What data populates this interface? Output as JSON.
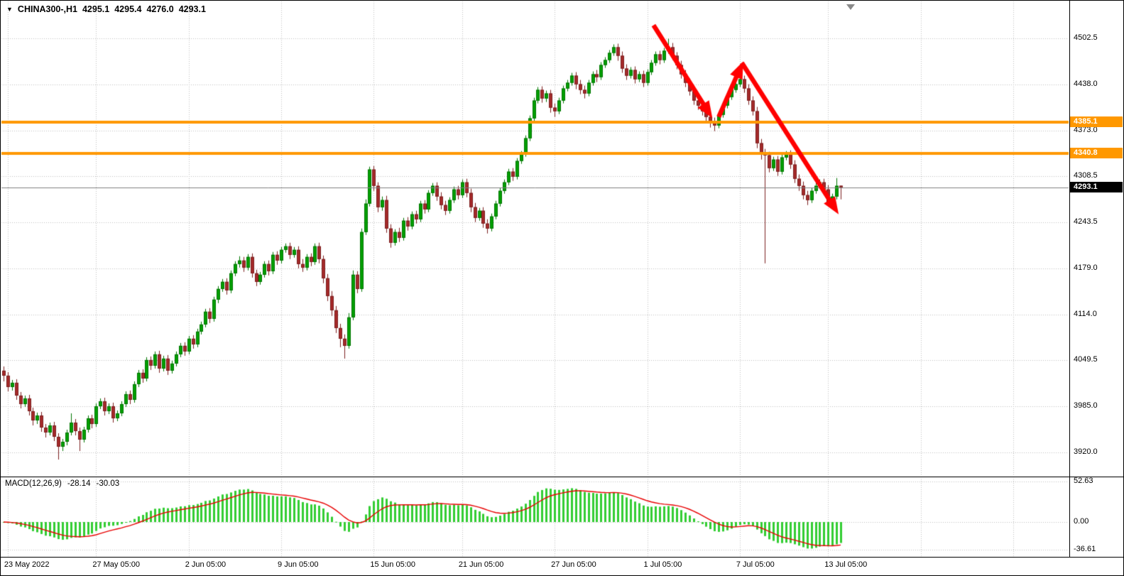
{
  "header": {
    "symbol_timeframe": "CHINA300-,H1",
    "ohlc": {
      "open": "4295.1",
      "high": "4295.4",
      "low": "4276.0",
      "close": "4293.1"
    }
  },
  "icons": {
    "symbol_dropdown": "▼"
  },
  "macd_panel": {
    "label": "MACD(12,26,9)",
    "value_main": "-28.14",
    "value_signal": "-30.03"
  },
  "chart_data": {
    "type": "candlestick",
    "symbol": "CHINA300-",
    "timeframe": "H1",
    "price_axis": {
      "ticks": [
        4502.5,
        4438.0,
        4373.0,
        4308.5,
        4243.5,
        4179.0,
        4114.0,
        4049.5,
        3985.0,
        3920.0
      ],
      "labels": [
        "4502.5",
        "4438.0",
        "4373.0",
        "4308.5",
        "4243.5",
        "4179.0",
        "4114.0",
        "4049.5",
        "3985.0",
        "3920.0"
      ]
    },
    "time_axis": {
      "labels": [
        "23 May 2022",
        "27 May 05:00",
        "2 Jun 05:00",
        "9 Jun 05:00",
        "15 Jun 05:00",
        "21 Jun 05:00",
        "27 Jun 05:00",
        "1 Jul 05:00",
        "7 Jul 05:00",
        "13 Jul 05:00"
      ],
      "candle_indices": [
        1,
        22,
        44,
        66,
        88,
        109,
        131,
        153,
        175,
        196
      ],
      "grid_indices": [
        1,
        22,
        44,
        66,
        88,
        109,
        131,
        153,
        175,
        196,
        218,
        240
      ]
    },
    "levels": [
      {
        "price": 4385.1,
        "label": "4385.1",
        "color": "#FF9800"
      },
      {
        "price": 4340.8,
        "label": "4340.8",
        "color": "#FF9800"
      }
    ],
    "current_price": {
      "price": 4293.1,
      "label": "4293.1"
    },
    "macd": {
      "fast": 12,
      "slow": 26,
      "signal": 9,
      "axis_ticks": [
        52.63,
        0.0,
        -36.61
      ],
      "axis_labels": [
        "52.63",
        "0.00",
        "-36.61"
      ]
    },
    "annotations": {
      "arrows": [
        {
          "from": [
            154.5,
            4521
          ],
          "to": [
            168.5,
            4390
          ]
        },
        {
          "from": [
            170.0,
            4392
          ],
          "to": [
            175.8,
            4470
          ]
        },
        {
          "from": [
            175.5,
            4468
          ],
          "to": [
            198.5,
            4255
          ]
        }
      ]
    },
    "colors": {
      "up_fill": "#00A000",
      "up_edge": "#007500",
      "down_fill": "#A52A2A",
      "down_edge": "#7C1F1F",
      "grid": "#BFBFBF",
      "level": "#FF9800",
      "current_line": "#7F7F7F",
      "macd_histogram": "#32CD32",
      "macd_signal": "#E80000",
      "arrow": "#FF0000"
    },
    "candles": [
      [
        4035,
        4041,
        4020,
        4028
      ],
      [
        4028,
        4033,
        4006,
        4012
      ],
      [
        4012,
        4022,
        4007,
        4018
      ],
      [
        4018,
        4023,
        3994,
        4000
      ],
      [
        4000,
        4005,
        3982,
        3988
      ],
      [
        3988,
        4000,
        3984,
        3996
      ],
      [
        3996,
        4001,
        3972,
        3978
      ],
      [
        3978,
        3983,
        3958,
        3965
      ],
      [
        3965,
        3976,
        3960,
        3972
      ],
      [
        3972,
        3977,
        3949,
        3955
      ],
      [
        3955,
        3960,
        3941,
        3948
      ],
      [
        3948,
        3962,
        3944,
        3958
      ],
      [
        3958,
        3963,
        3936,
        3942
      ],
      [
        3942,
        3947,
        3910,
        3928
      ],
      [
        3928,
        3939,
        3922,
        3935
      ],
      [
        3935,
        3952,
        3930,
        3948
      ],
      [
        3948,
        3975,
        3944,
        3962
      ],
      [
        3962,
        3967,
        3944,
        3950
      ],
      [
        3950,
        3955,
        3922,
        3938
      ],
      [
        3938,
        3956,
        3934,
        3952
      ],
      [
        3952,
        3972,
        3948,
        3968
      ],
      [
        3968,
        3973,
        3954,
        3960
      ],
      [
        3960,
        3989,
        3956,
        3985
      ],
      [
        3985,
        3996,
        3981,
        3992
      ],
      [
        3992,
        3997,
        3972,
        3978
      ],
      [
        3978,
        3989,
        3974,
        3985
      ],
      [
        3985,
        3990,
        3962,
        3968
      ],
      [
        3968,
        3979,
        3964,
        3975
      ],
      [
        3975,
        3992,
        3971,
        3988
      ],
      [
        3988,
        4006,
        3984,
        4002
      ],
      [
        4002,
        4007,
        3988,
        3994
      ],
      [
        3994,
        4020,
        3990,
        4016
      ],
      [
        4016,
        4036,
        4012,
        4032
      ],
      [
        4032,
        4037,
        4018,
        4024
      ],
      [
        4024,
        4054,
        4020,
        4050
      ],
      [
        4050,
        4055,
        4036,
        4042
      ],
      [
        4042,
        4062,
        4038,
        4058
      ],
      [
        4058,
        4063,
        4032,
        4038
      ],
      [
        4038,
        4056,
        4034,
        4052
      ],
      [
        4052,
        4057,
        4029,
        4035
      ],
      [
        4035,
        4049,
        4031,
        4045
      ],
      [
        4045,
        4062,
        4041,
        4058
      ],
      [
        4058,
        4074,
        4054,
        4070
      ],
      [
        4070,
        4075,
        4056,
        4062
      ],
      [
        4062,
        4084,
        4058,
        4080
      ],
      [
        4080,
        4085,
        4066,
        4072
      ],
      [
        4072,
        4094,
        4068,
        4090
      ],
      [
        4090,
        4104,
        4086,
        4100
      ],
      [
        4100,
        4122,
        4096,
        4118
      ],
      [
        4118,
        4123,
        4102,
        4108
      ],
      [
        4108,
        4139,
        4104,
        4135
      ],
      [
        4135,
        4154,
        4130,
        4150
      ],
      [
        4150,
        4164,
        4146,
        4160
      ],
      [
        4160,
        4165,
        4142,
        4148
      ],
      [
        4148,
        4176,
        4144,
        4172
      ],
      [
        4172,
        4189,
        4168,
        4185
      ],
      [
        4185,
        4196,
        4180,
        4190
      ],
      [
        4190,
        4195,
        4174,
        4180
      ],
      [
        4180,
        4199,
        4176,
        4195
      ],
      [
        4195,
        4200,
        4166,
        4172
      ],
      [
        4172,
        4177,
        4154,
        4160
      ],
      [
        4160,
        4174,
        4156,
        4170
      ],
      [
        4170,
        4189,
        4166,
        4185
      ],
      [
        4185,
        4190,
        4169,
        4175
      ],
      [
        4175,
        4202,
        4171,
        4198
      ],
      [
        4198,
        4203,
        4184,
        4190
      ],
      [
        4190,
        4209,
        4186,
        4205
      ],
      [
        4205,
        4214,
        4201,
        4210
      ],
      [
        4210,
        4215,
        4192,
        4198
      ],
      [
        4198,
        4209,
        4194,
        4205
      ],
      [
        4205,
        4210,
        4179,
        4185
      ],
      [
        4185,
        4192,
        4174,
        4180
      ],
      [
        4180,
        4199,
        4176,
        4195
      ],
      [
        4195,
        4200,
        4182,
        4188
      ],
      [
        4188,
        4214,
        4184,
        4210
      ],
      [
        4210,
        4215,
        4186,
        4192
      ],
      [
        4192,
        4197,
        4158,
        4165
      ],
      [
        4165,
        4171,
        4133,
        4140
      ],
      [
        4140,
        4147,
        4112,
        4120
      ],
      [
        4120,
        4126,
        4088,
        4095
      ],
      [
        4095,
        4101,
        4068,
        4080
      ],
      [
        4080,
        4086,
        4052,
        4070
      ],
      [
        4070,
        4116,
        4066,
        4110
      ],
      [
        4110,
        4176,
        4106,
        4170
      ],
      [
        4170,
        4175,
        4144,
        4150
      ],
      [
        4150,
        4235,
        4146,
        4230
      ],
      [
        4230,
        4276,
        4226,
        4270
      ],
      [
        4270,
        4322,
        4266,
        4318
      ],
      [
        4318,
        4323,
        4288,
        4295
      ],
      [
        4295,
        4300,
        4258,
        4265
      ],
      [
        4265,
        4280,
        4260,
        4275
      ],
      [
        4275,
        4281,
        4229,
        4235
      ],
      [
        4235,
        4241,
        4208,
        4215
      ],
      [
        4215,
        4234,
        4211,
        4230
      ],
      [
        4230,
        4236,
        4216,
        4222
      ],
      [
        4222,
        4250,
        4218,
        4246
      ],
      [
        4246,
        4251,
        4232,
        4238
      ],
      [
        4238,
        4259,
        4234,
        4255
      ],
      [
        4255,
        4260,
        4242,
        4248
      ],
      [
        4248,
        4274,
        4244,
        4270
      ],
      [
        4270,
        4275,
        4256,
        4262
      ],
      [
        4262,
        4289,
        4258,
        4285
      ],
      [
        4285,
        4299,
        4281,
        4295
      ],
      [
        4295,
        4300,
        4274,
        4280
      ],
      [
        4280,
        4286,
        4262,
        4268
      ],
      [
        4268,
        4274,
        4254,
        4260
      ],
      [
        4260,
        4279,
        4256,
        4275
      ],
      [
        4275,
        4294,
        4271,
        4290
      ],
      [
        4290,
        4295,
        4276,
        4282
      ],
      [
        4282,
        4304,
        4278,
        4300
      ],
      [
        4300,
        4305,
        4279,
        4285
      ],
      [
        4285,
        4291,
        4258,
        4265
      ],
      [
        4265,
        4271,
        4244,
        4250
      ],
      [
        4250,
        4264,
        4246,
        4260
      ],
      [
        4260,
        4265,
        4236,
        4242
      ],
      [
        4242,
        4248,
        4228,
        4235
      ],
      [
        4235,
        4256,
        4231,
        4252
      ],
      [
        4252,
        4274,
        4248,
        4270
      ],
      [
        4270,
        4292,
        4266,
        4288
      ],
      [
        4288,
        4304,
        4284,
        4300
      ],
      [
        4300,
        4319,
        4296,
        4315
      ],
      [
        4315,
        4320,
        4302,
        4308
      ],
      [
        4308,
        4334,
        4304,
        4330
      ],
      [
        4330,
        4344,
        4326,
        4340
      ],
      [
        4340,
        4366,
        4336,
        4362
      ],
      [
        4362,
        4394,
        4358,
        4390
      ],
      [
        4390,
        4419,
        4386,
        4415
      ],
      [
        4415,
        4434,
        4411,
        4430
      ],
      [
        4430,
        4435,
        4412,
        4418
      ],
      [
        4418,
        4429,
        4413,
        4425
      ],
      [
        4425,
        4430,
        4398,
        4405
      ],
      [
        4405,
        4411,
        4392,
        4400
      ],
      [
        4400,
        4419,
        4396,
        4415
      ],
      [
        4415,
        4436,
        4411,
        4432
      ],
      [
        4432,
        4444,
        4428,
        4440
      ],
      [
        4440,
        4454,
        4436,
        4450
      ],
      [
        4450,
        4455,
        4431,
        4438
      ],
      [
        4438,
        4444,
        4424,
        4430
      ],
      [
        4430,
        4436,
        4418,
        4425
      ],
      [
        4425,
        4444,
        4421,
        4440
      ],
      [
        4440,
        4456,
        4436,
        4452
      ],
      [
        4452,
        4458,
        4441,
        4448
      ],
      [
        4448,
        4469,
        4444,
        4465
      ],
      [
        4465,
        4476,
        4461,
        4472
      ],
      [
        4472,
        4486,
        4468,
        4482
      ],
      [
        4482,
        4494,
        4478,
        4490
      ],
      [
        4490,
        4495,
        4471,
        4478
      ],
      [
        4478,
        4484,
        4454,
        4460
      ],
      [
        4460,
        4466,
        4444,
        4450
      ],
      [
        4450,
        4462,
        4446,
        4458
      ],
      [
        4458,
        4463,
        4439,
        4445
      ],
      [
        4445,
        4456,
        4441,
        4452
      ],
      [
        4452,
        4457,
        4434,
        4440
      ],
      [
        4440,
        4459,
        4436,
        4455
      ],
      [
        4455,
        4472,
        4451,
        4468
      ],
      [
        4468,
        4484,
        4464,
        4480
      ],
      [
        4480,
        4485,
        4466,
        4472
      ],
      [
        4472,
        4489,
        4468,
        4485
      ],
      [
        4485,
        4502,
        4481,
        4490
      ],
      [
        4490,
        4496,
        4472,
        4478
      ],
      [
        4478,
        4483,
        4459,
        4465
      ],
      [
        4465,
        4471,
        4446,
        4452
      ],
      [
        4452,
        4458,
        4434,
        4440
      ],
      [
        4440,
        4446,
        4422,
        4428
      ],
      [
        4428,
        4434,
        4409,
        4415
      ],
      [
        4415,
        4421,
        4402,
        4408
      ],
      [
        4408,
        4414,
        4394,
        4400
      ],
      [
        4400,
        4406,
        4386,
        4392
      ],
      [
        4392,
        4398,
        4377,
        4385
      ],
      [
        4385,
        4391,
        4372,
        4380
      ],
      [
        4380,
        4399,
        4376,
        4395
      ],
      [
        4395,
        4412,
        4391,
        4408
      ],
      [
        4408,
        4424,
        4404,
        4420
      ],
      [
        4420,
        4434,
        4416,
        4430
      ],
      [
        4430,
        4442,
        4426,
        4438
      ],
      [
        4438,
        4450,
        4434,
        4445
      ],
      [
        4445,
        4450,
        4426,
        4432
      ],
      [
        4432,
        4438,
        4409,
        4415
      ],
      [
        4415,
        4421,
        4394,
        4400
      ],
      [
        4400,
        4406,
        4348,
        4355
      ],
      [
        4355,
        4361,
        4332,
        4340
      ],
      [
        4340,
        4347,
        4186,
        4338
      ],
      [
        4338,
        4343,
        4314,
        4320
      ],
      [
        4320,
        4336,
        4316,
        4332
      ],
      [
        4332,
        4337,
        4309,
        4315
      ],
      [
        4315,
        4339,
        4311,
        4335
      ],
      [
        4335,
        4344,
        4331,
        4340
      ],
      [
        4340,
        4345,
        4319,
        4325
      ],
      [
        4325,
        4331,
        4299,
        4305
      ],
      [
        4305,
        4311,
        4288,
        4295
      ],
      [
        4295,
        4301,
        4276,
        4282
      ],
      [
        4282,
        4288,
        4268,
        4275
      ],
      [
        4275,
        4292,
        4271,
        4288
      ],
      [
        4288,
        4299,
        4284,
        4295
      ],
      [
        4295,
        4304,
        4291,
        4300
      ],
      [
        4300,
        4305,
        4284,
        4290
      ],
      [
        4290,
        4296,
        4266,
        4272
      ],
      [
        4272,
        4284,
        4268,
        4280
      ],
      [
        4280,
        4306,
        4276,
        4295
      ],
      [
        4295.1,
        4295.4,
        4276.0,
        4293.1
      ]
    ]
  }
}
